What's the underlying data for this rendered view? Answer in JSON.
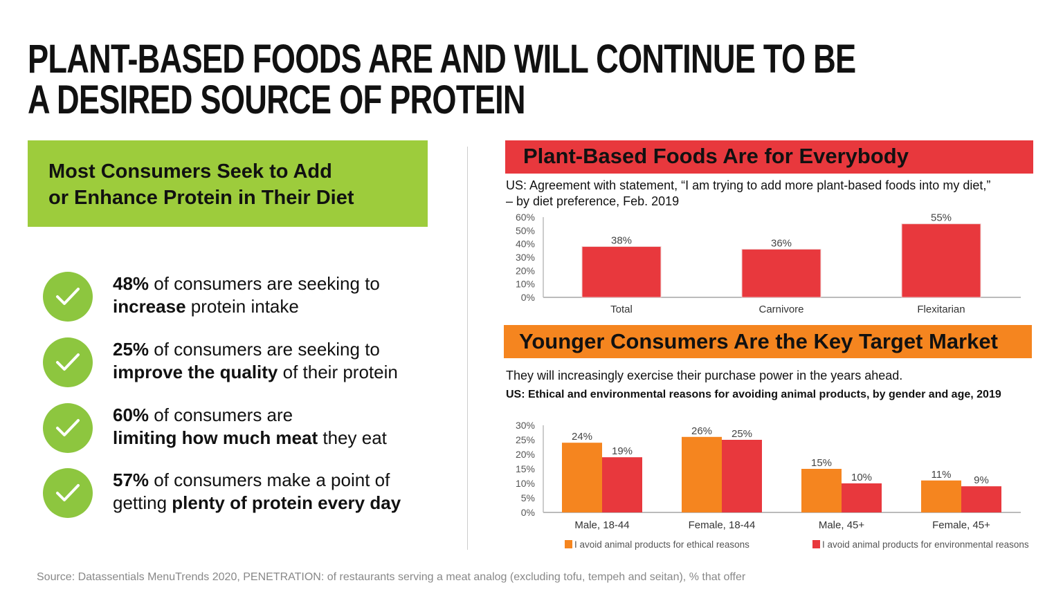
{
  "title": {
    "line1": "PLANT-BASED FOODS ARE AND WILL CONTINUE TO BE",
    "line2": "A DESIRED SOURCE OF PROTEIN"
  },
  "left": {
    "header": {
      "line1": "Most Consumers Seek to Add",
      "line2": "or Enhance Protein in Their Diet"
    },
    "stats": [
      {
        "pct": "48%",
        "pre": " of consumers are seeking to",
        "bold": "increase",
        "post": " protein intake"
      },
      {
        "pct": "25%",
        "pre": " of consumers are seeking to",
        "bold": "improve the quality",
        "post": " of their protein"
      },
      {
        "pct": "60%",
        "pre": " of consumers are",
        "bold": "limiting how much meat",
        "post": " they eat"
      },
      {
        "pct": "57%",
        "pre": " of consumers make a point of",
        "bold2pre": "getting ",
        "bold": "plenty of protein every day",
        "post": ""
      }
    ]
  },
  "right": {
    "header1": "Plant-Based Foods Are for Everybody",
    "subtitle1": {
      "line1": "US: Agreement with statement, “I am trying to add more plant-based foods into my diet,”",
      "line2": "– by diet preference, Feb. 2019"
    },
    "header2": "Younger Consumers Are the Key Target Market",
    "subtitle2": "They will increasingly exercise their purchase power in the years ahead.",
    "subtitle2b": "US: Ethical and environmental reasons for avoiding animal products, by gender and age, 2019"
  },
  "source": "Source: Datassentials MenuTrends 2020, PENETRATION: of restaurants serving a meat analog (excluding tofu, tempeh and seitan), % that offer",
  "colors": {
    "green": "#9dcc3c",
    "red": "#e8383d",
    "orange": "#f5851f"
  },
  "chart_data": [
    {
      "type": "bar",
      "categories": [
        "Total",
        "Carnivore",
        "Flexitarian"
      ],
      "values": [
        38,
        36,
        55
      ],
      "data_labels": [
        "38%",
        "36%",
        "55%"
      ],
      "ylim": [
        0,
        60
      ],
      "yticks": [
        "0%",
        "10%",
        "20%",
        "30%",
        "40%",
        "50%",
        "60%"
      ],
      "grid": false
    },
    {
      "type": "bar",
      "categories": [
        "Male, 18-44",
        "Female, 18-44",
        "Male, 45+",
        "Female, 45+"
      ],
      "series": [
        {
          "name": "I avoid animal products for ethical reasons",
          "values": [
            24,
            26,
            15,
            11
          ],
          "labels": [
            "24%",
            "26%",
            "15%",
            "11%"
          ],
          "color": "#f5851f"
        },
        {
          "name": "I avoid animal products for environmental reasons",
          "values": [
            19,
            25,
            10,
            9
          ],
          "labels": [
            "19%",
            "25%",
            "10%",
            "9%"
          ],
          "color": "#e8383d"
        }
      ],
      "ylim": [
        0,
        30
      ],
      "yticks": [
        "0%",
        "5%",
        "10%",
        "15%",
        "20%",
        "25%",
        "30%"
      ],
      "grid": false,
      "legend": "bottom"
    }
  ]
}
